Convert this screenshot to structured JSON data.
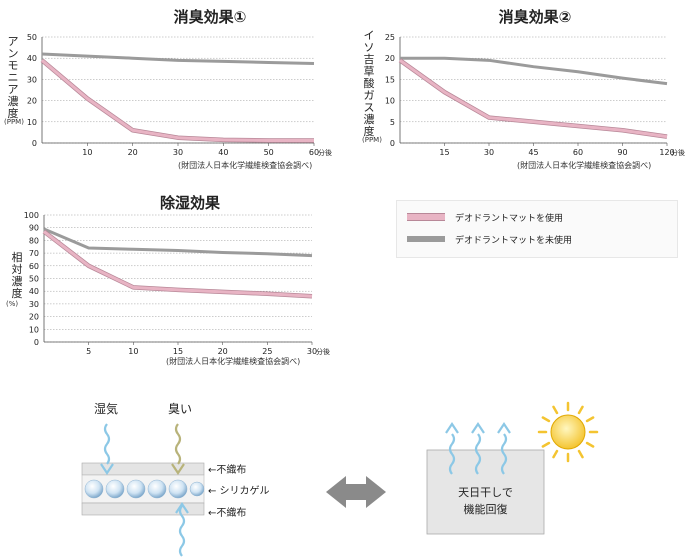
{
  "chart_data": [
    {
      "type": "line",
      "title": "消臭効果①",
      "ylabel": [
        "ア",
        "ン",
        "モ",
        "ニ",
        "ア",
        "濃",
        "度"
      ],
      "yunit": "(PPM)",
      "xunit": "分後",
      "source": "(財団法人日本化学繊維検査協会調べ)",
      "x": [
        0,
        10,
        20,
        30,
        40,
        50,
        60
      ],
      "xticks": [
        10,
        20,
        30,
        40,
        50,
        60
      ],
      "yticks": [
        0,
        10,
        20,
        30,
        40,
        50
      ],
      "xlim": [
        0,
        60
      ],
      "ylim": [
        0,
        50
      ],
      "series": [
        {
          "name": "デオドラントマットを使用",
          "values": [
            39,
            21,
            6,
            2.5,
            1.5,
            1.2,
            1.2
          ]
        },
        {
          "name": "デオドラントマットを未使用",
          "values": [
            42,
            41,
            40,
            39,
            38.5,
            38,
            37.5
          ]
        }
      ]
    },
    {
      "type": "line",
      "title": "消臭効果②",
      "ylabel": [
        "イ",
        "ソ",
        "吉",
        "草",
        "酸",
        "ガ",
        "ス",
        "濃",
        "度"
      ],
      "yunit": "(PPM)",
      "xunit": "分後",
      "source": "(財団法人日本化学繊維検査協会調べ)",
      "x": [
        0,
        15,
        30,
        45,
        60,
        90,
        120
      ],
      "xticks": [
        "15",
        "30",
        "45",
        "60",
        "90",
        "120"
      ],
      "yticks": [
        0,
        5,
        10,
        15,
        20,
        25
      ],
      "ylim": [
        0,
        25
      ],
      "series": [
        {
          "name": "デオドラントマットを使用",
          "values": [
            19.5,
            12,
            6,
            5,
            4,
            3,
            1.5
          ]
        },
        {
          "name": "デオドラントマットを未使用",
          "values": [
            20,
            20,
            19.5,
            18,
            16.8,
            15.3,
            14
          ]
        }
      ]
    },
    {
      "type": "line",
      "title": "除湿効果",
      "ylabel": [
        "相",
        "対",
        "濃",
        "度"
      ],
      "yunit": "(%)",
      "xunit": "分後",
      "source": "(財団法人日本化学繊維検査協会調べ)",
      "x": [
        0,
        5,
        10,
        15,
        20,
        25,
        30
      ],
      "xticks": [
        5,
        10,
        15,
        20,
        25,
        30
      ],
      "yticks": [
        0,
        10,
        20,
        30,
        40,
        50,
        60,
        70,
        80,
        90,
        100
      ],
      "xlim": [
        0,
        30
      ],
      "ylim": [
        0,
        100
      ],
      "series": [
        {
          "name": "デオドラントマットを使用",
          "values": [
            87,
            60,
            43,
            41,
            39.5,
            38,
            36
          ]
        },
        {
          "name": "デオドラントマットを未使用",
          "values": [
            89,
            74,
            73,
            72,
            70.5,
            69.5,
            68
          ]
        }
      ]
    }
  ],
  "legend": {
    "items": [
      {
        "label": "デオドラントマットを使用",
        "color": "#e8b4c4"
      },
      {
        "label": "デオドラントマットを未使用",
        "color": "#9b9b9b"
      }
    ]
  },
  "colors": {
    "used": "#e8b4c4",
    "used_edge": "#b88898",
    "unused": "#9b9b9b",
    "grid": "#9a9a9a"
  },
  "diagram": {
    "humidity_label": "湿気",
    "odor_label": "臭い",
    "layer_top": "←不織布",
    "layer_middle": "← シリカゲル",
    "layer_bottom": "←不織布",
    "sun_caption_line1": "天日干しで",
    "sun_caption_line2": "機能回復",
    "arrow_icon": "double-arrow-icon",
    "sun_icon": "sun-icon"
  }
}
